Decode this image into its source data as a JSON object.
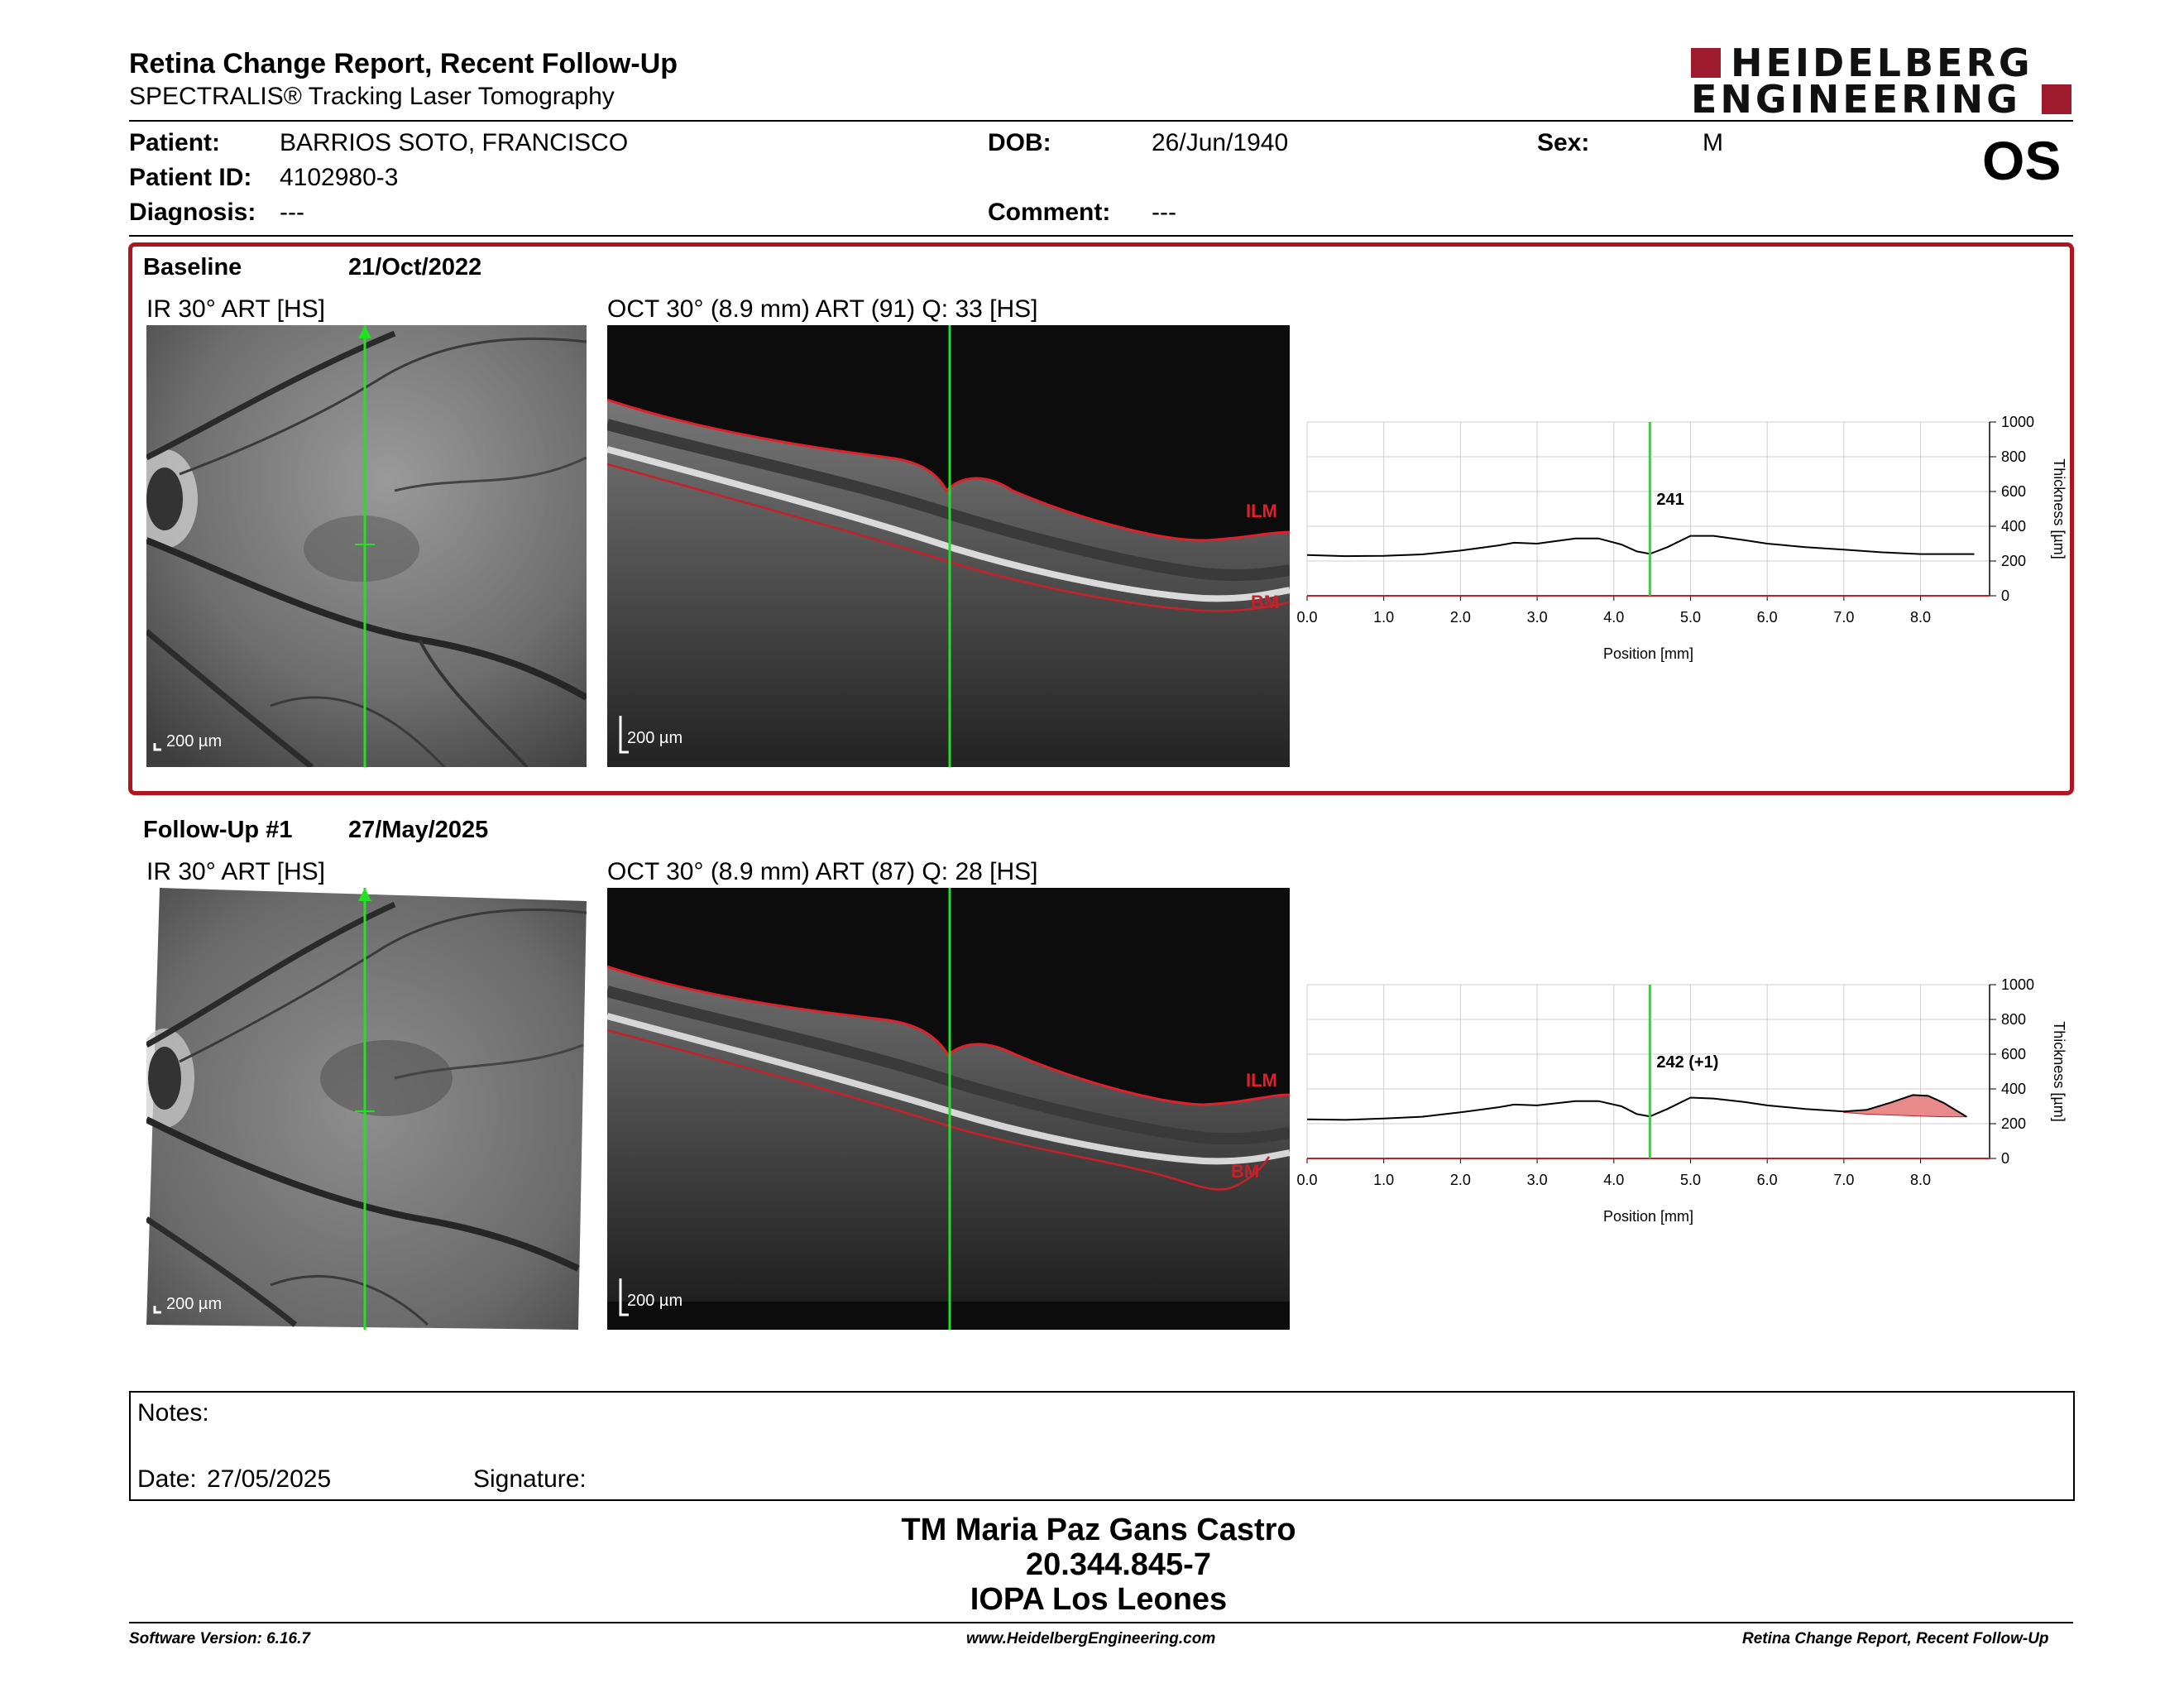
{
  "header": {
    "title": "Retina Change Report, Recent Follow-Up",
    "subtitle": "SPECTRALIS® Tracking Laser Tomography",
    "logo_line1": "HEIDELBERG",
    "logo_line2": "ENGINEERING",
    "eye": "OS"
  },
  "patient": {
    "name_label": "Patient:",
    "name": "BARRIOS SOTO, FRANCISCO",
    "id_label": "Patient ID:",
    "id": "4102980-3",
    "diagnosis_label": "Diagnosis:",
    "diagnosis": "---",
    "dob_label": "DOB:",
    "dob": "26/Jun/1940",
    "comment_label": "Comment:",
    "comment": "---",
    "sex_label": "Sex:",
    "sex": "M"
  },
  "visits": [
    {
      "label": "Baseline",
      "date": "21/Oct/2022",
      "ir_caption": "IR 30° ART [HS]",
      "oct_caption": "OCT 30° (8.9 mm) ART (91) Q: 33 [HS]",
      "ir_scale": "200 µm",
      "oct_scale": "200 µm",
      "ilm_label": "ILM",
      "bm_label": "BM"
    },
    {
      "label": "Follow-Up #1",
      "date": "27/May/2025",
      "ir_caption": "IR 30° ART [HS]",
      "oct_caption": "OCT 30° (8.9 mm) ART (87) Q: 28 [HS]",
      "ir_scale": "200 µm",
      "oct_scale": "200 µm",
      "ilm_label": "ILM",
      "bm_label": "BM"
    }
  ],
  "chart_data": [
    {
      "type": "line",
      "xlabel": "Position [mm]",
      "ylabel": "Thickness [µm]",
      "xlim": [
        0,
        8.9
      ],
      "ylim": [
        0,
        1000
      ],
      "x_ticks": [
        "0.0",
        "1.0",
        "2.0",
        "3.0",
        "4.0",
        "5.0",
        "6.0",
        "7.0",
        "8.0"
      ],
      "y_ticks": [
        "0",
        "200",
        "400",
        "600",
        "800",
        "1000"
      ],
      "cursor_x": 4.47,
      "cursor_label": "241",
      "series": [
        {
          "x": [
            0,
            0.5,
            1.0,
            1.5,
            2.0,
            2.5,
            2.7,
            3.0,
            3.5,
            3.8,
            4.1,
            4.3,
            4.47,
            4.7,
            5.0,
            5.3,
            5.7,
            6.0,
            6.5,
            7.0,
            7.5,
            8.0,
            8.5,
            8.7
          ],
          "values": [
            235,
            228,
            230,
            238,
            260,
            290,
            305,
            300,
            330,
            330,
            295,
            255,
            241,
            280,
            345,
            345,
            320,
            300,
            280,
            265,
            250,
            240,
            240,
            240
          ]
        }
      ]
    },
    {
      "type": "line",
      "xlabel": "Position [mm]",
      "ylabel": "Thickness [µm]",
      "xlim": [
        0,
        8.9
      ],
      "ylim": [
        0,
        1000
      ],
      "x_ticks": [
        "0.0",
        "1.0",
        "2.0",
        "3.0",
        "4.0",
        "5.0",
        "6.0",
        "7.0",
        "8.0"
      ],
      "y_ticks": [
        "0",
        "200",
        "400",
        "600",
        "800",
        "1000"
      ],
      "cursor_x": 4.47,
      "cursor_label": "242 (+1)",
      "series": [
        {
          "x": [
            0,
            0.5,
            1.0,
            1.5,
            2.0,
            2.5,
            2.7,
            3.0,
            3.5,
            3.8,
            4.1,
            4.3,
            4.47,
            4.7,
            5.0,
            5.3,
            5.7,
            6.0,
            6.5,
            7.0,
            7.3,
            7.6,
            7.9,
            8.1,
            8.3,
            8.6
          ],
          "values": [
            225,
            222,
            230,
            240,
            265,
            295,
            310,
            305,
            330,
            330,
            300,
            255,
            242,
            285,
            350,
            345,
            325,
            305,
            285,
            270,
            280,
            320,
            365,
            360,
            320,
            240
          ]
        },
        {
          "name": "baseline",
          "x": [
            7.0,
            7.3,
            7.6,
            7.9,
            8.1,
            8.3,
            8.6
          ],
          "values": [
            265,
            255,
            250,
            245,
            242,
            240,
            240
          ]
        }
      ]
    }
  ],
  "notes": {
    "label": "Notes:",
    "date_label": "Date:",
    "date": "27/05/2025",
    "signature_label": "Signature:"
  },
  "signature_block": {
    "line1": "TM Maria Paz Gans Castro",
    "line2": "20.344.845-7",
    "line3": "IOPA Los Leones"
  },
  "footer": {
    "software": "Software Version: 6.16.7",
    "website": "www.HeidelbergEngineering.com",
    "report_name": "Retina Change Report, Recent Follow-Up"
  }
}
